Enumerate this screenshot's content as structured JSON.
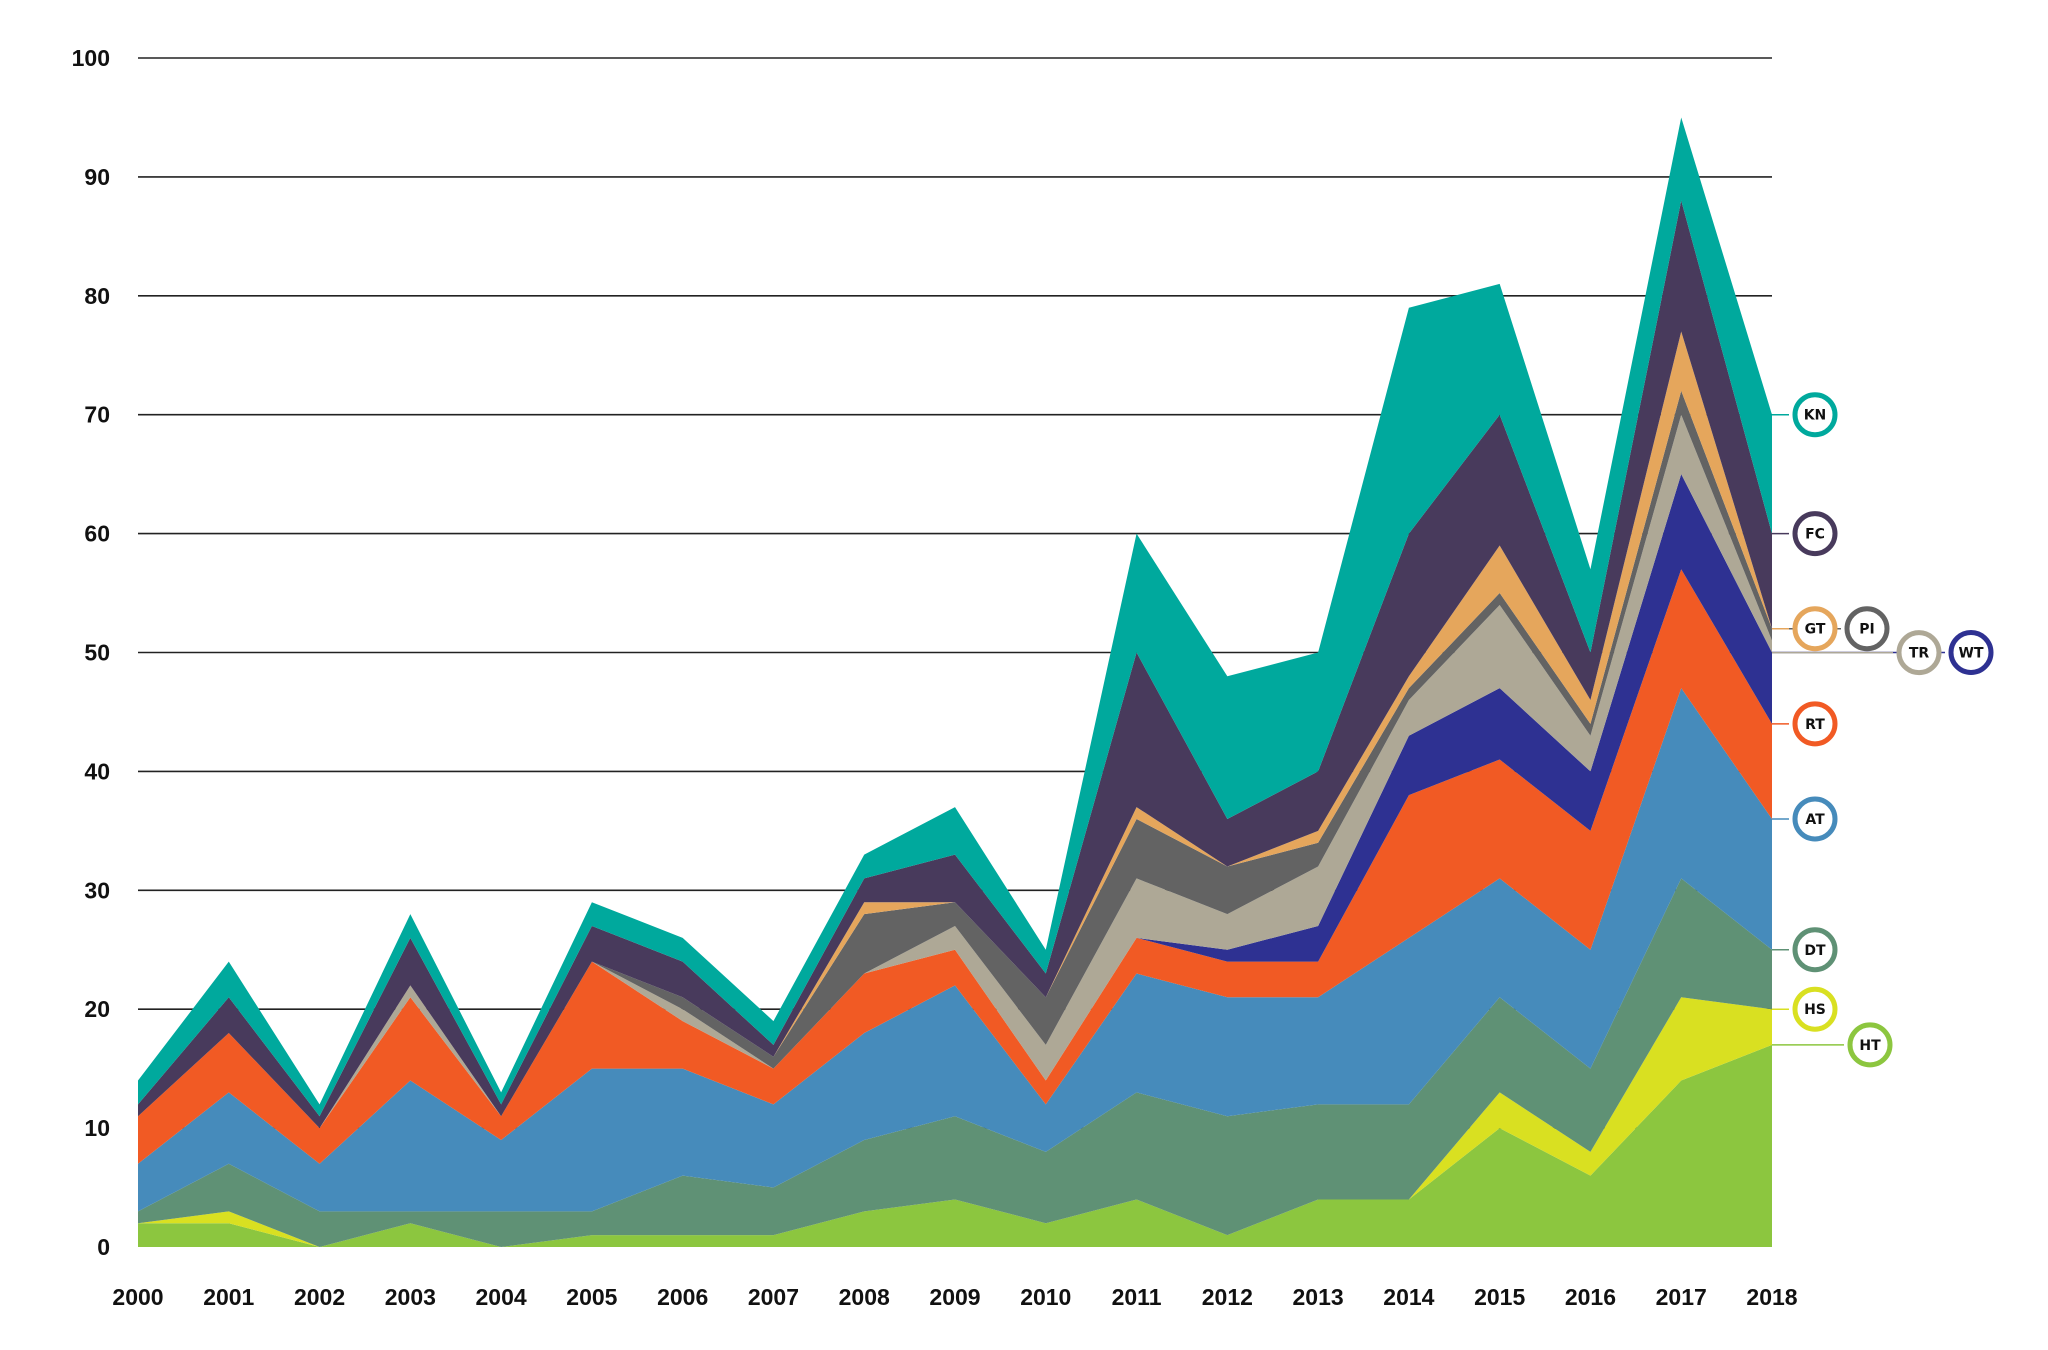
{
  "chart_data": {
    "type": "area",
    "stacked": true,
    "title": "",
    "xlabel": "",
    "ylabel": "",
    "x": [
      2000,
      2001,
      2002,
      2003,
      2004,
      2005,
      2006,
      2007,
      2008,
      2009,
      2010,
      2011,
      2012,
      2013,
      2014,
      2015,
      2016,
      2017,
      2018
    ],
    "x_tick_labels": [
      "2000",
      "2001",
      "2002",
      "2003",
      "2004",
      "2005",
      "2006",
      "2007",
      "2008",
      "2009",
      "2010",
      "2011",
      "2012",
      "2013",
      "2014",
      "2015",
      "2016",
      "2017",
      "2018"
    ],
    "ylim": [
      0,
      100
    ],
    "y_ticks": [
      0,
      10,
      20,
      30,
      40,
      50,
      60,
      70,
      80,
      90,
      100
    ],
    "y_tick_labels": [
      "0",
      "10",
      "20",
      "30",
      "40",
      "50",
      "60",
      "70",
      "80",
      "90",
      "100"
    ],
    "grid": "horizontal",
    "legend_placement": "right end labels",
    "series": [
      {
        "name": "HT",
        "color": "#8cc63f",
        "values": [
          2,
          2,
          0,
          2,
          0,
          1,
          1,
          1,
          3,
          4,
          2,
          4,
          1,
          4,
          4,
          10,
          6,
          14,
          17
        ]
      },
      {
        "name": "HS",
        "color": "#d9e021",
        "values": [
          0,
          1,
          0,
          0,
          0,
          0,
          0,
          0,
          0,
          0,
          0,
          0,
          0,
          0,
          0,
          3,
          2,
          7,
          3
        ]
      },
      {
        "name": "DT",
        "color": "#5f9175",
        "values": [
          1,
          4,
          3,
          1,
          3,
          2,
          5,
          4,
          6,
          7,
          6,
          9,
          10,
          8,
          8,
          8,
          7,
          10,
          5
        ]
      },
      {
        "name": "AT",
        "color": "#468bbb",
        "values": [
          4,
          6,
          4,
          11,
          6,
          12,
          9,
          7,
          9,
          11,
          4,
          10,
          10,
          9,
          14,
          10,
          10,
          16,
          11
        ]
      },
      {
        "name": "RT",
        "color": "#f15a24",
        "values": [
          4,
          5,
          3,
          7,
          2,
          9,
          4,
          3,
          5,
          3,
          2,
          3,
          3,
          3,
          12,
          10,
          10,
          10,
          8
        ]
      },
      {
        "name": "WT",
        "color": "#2e3192",
        "values": [
          0,
          0,
          0,
          0,
          0,
          0,
          0,
          0,
          0,
          0,
          0,
          0,
          1,
          3,
          5,
          6,
          5,
          8,
          6
        ]
      },
      {
        "name": "TR",
        "color": "#aea896",
        "values": [
          0,
          0,
          0,
          1,
          0,
          0,
          1,
          0,
          0,
          2,
          3,
          5,
          3,
          5,
          3,
          7,
          3,
          5,
          1
        ]
      },
      {
        "name": "PI",
        "color": "#636363",
        "values": [
          0,
          0,
          0,
          0,
          0,
          0,
          1,
          1,
          5,
          2,
          4,
          5,
          4,
          2,
          1,
          1,
          1,
          2,
          1
        ]
      },
      {
        "name": "GT",
        "color": "#e5a65c",
        "values": [
          0,
          0,
          0,
          0,
          0,
          0,
          0,
          0,
          1,
          0,
          0,
          1,
          0,
          1,
          1,
          4,
          2,
          5,
          0
        ]
      },
      {
        "name": "FC",
        "color": "#483a5c",
        "values": [
          1,
          3,
          1,
          4,
          1,
          3,
          3,
          1,
          2,
          4,
          2,
          13,
          4,
          5,
          12,
          11,
          4,
          11,
          8
        ]
      },
      {
        "name": "KN",
        "color": "#00a99d",
        "values": [
          2,
          3,
          1,
          2,
          1,
          2,
          2,
          2,
          2,
          4,
          2,
          10,
          12,
          10,
          19,
          11,
          7,
          7,
          10
        ]
      }
    ]
  }
}
